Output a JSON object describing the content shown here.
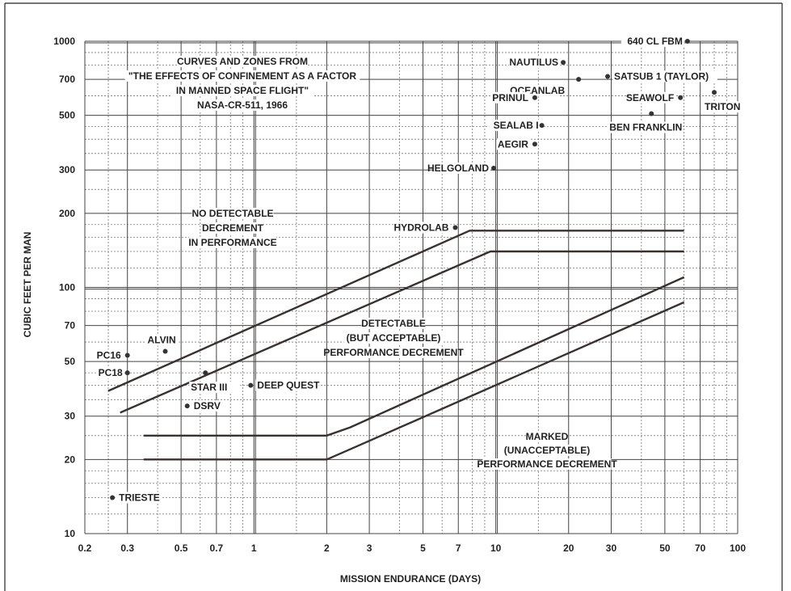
{
  "chart_data": {
    "type": "scatter",
    "title": "",
    "xlabel": "MISSION ENDURANCE (DAYS)",
    "ylabel": "CUBIC FEET PER MAN",
    "x_scale": "log",
    "y_scale": "log",
    "xlim": [
      0.2,
      100
    ],
    "ylim": [
      10,
      1000
    ],
    "grid": true,
    "x_ticks": [
      "0.2",
      "0.3",
      "0.5",
      "0.7",
      "1",
      "2",
      "3",
      "5",
      "7",
      "10",
      "20",
      "30",
      "50",
      "70",
      "100"
    ],
    "y_ticks": [
      "10",
      "20",
      "30",
      "50",
      "70",
      "100",
      "200",
      "300",
      "500",
      "700",
      "1000"
    ],
    "annotations": [
      {
        "lines": [
          "CURVES AND ZONES FROM",
          "\"THE EFFECTS OF CONFINEMENT AS A FACTOR",
          "IN MANNED SPACE FLIGHT\"",
          "NASA-CR-511, 1966"
        ]
      },
      {
        "lines": [
          "NO DETECTABLE",
          "DECREMENT",
          "IN PERFORMANCE"
        ]
      },
      {
        "lines": [
          "DETECTABLE",
          "(BUT ACCEPTABLE)",
          "PERFORMANCE DECREMENT"
        ]
      },
      {
        "lines": [
          "MARKED",
          "(UNACCEPTABLE)",
          "PERFORMANCE DECREMENT"
        ]
      }
    ],
    "curves": [
      {
        "points": [
          [
            0.25,
            38
          ],
          [
            7.8,
            170
          ],
          [
            60,
            170
          ]
        ]
      },
      {
        "points": [
          [
            0.28,
            31
          ],
          [
            9.5,
            140
          ],
          [
            60,
            140
          ]
        ]
      },
      {
        "points": [
          [
            0.35,
            25
          ],
          [
            2.0,
            25
          ],
          [
            2.5,
            27
          ],
          [
            60,
            110
          ]
        ]
      },
      {
        "points": [
          [
            0.35,
            20
          ],
          [
            2.0,
            20
          ],
          [
            2.5,
            22
          ],
          [
            60,
            87
          ]
        ]
      }
    ],
    "points": [
      {
        "label": "640 CL FBM",
        "x": 62,
        "y": 1000
      },
      {
        "label": "NAUTILUS",
        "x": 19,
        "y": 820
      },
      {
        "label": "SATSUB 1 (TAYLOR)",
        "x": 29,
        "y": 720
      },
      {
        "label": "OCEANLAB",
        "x": 22,
        "y": 700
      },
      {
        "label": "PRINUL",
        "x": 14.5,
        "y": 590
      },
      {
        "label": "SEAWOLF",
        "x": 58,
        "y": 590
      },
      {
        "label": "TRITON",
        "x": 80,
        "y": 620
      },
      {
        "label": "SEALAB I",
        "x": 15.5,
        "y": 455
      },
      {
        "label": "BEN FRANKLIN",
        "x": 44,
        "y": 508
      },
      {
        "label": "AEGIR",
        "x": 14.5,
        "y": 382
      },
      {
        "label": "HELGOLAND",
        "x": 9.8,
        "y": 305
      },
      {
        "label": "HYDROLAB",
        "x": 6.8,
        "y": 175
      },
      {
        "label": "ALVIN",
        "x": 0.43,
        "y": 55
      },
      {
        "label": "PC16",
        "x": 0.3,
        "y": 53
      },
      {
        "label": "PC18",
        "x": 0.3,
        "y": 45
      },
      {
        "label": "STAR III",
        "x": 0.63,
        "y": 45
      },
      {
        "label": "DEEP QUEST",
        "x": 0.97,
        "y": 40
      },
      {
        "label": "DSRV",
        "x": 0.53,
        "y": 33
      },
      {
        "label": "TRIESTE",
        "x": 0.26,
        "y": 14
      }
    ]
  }
}
